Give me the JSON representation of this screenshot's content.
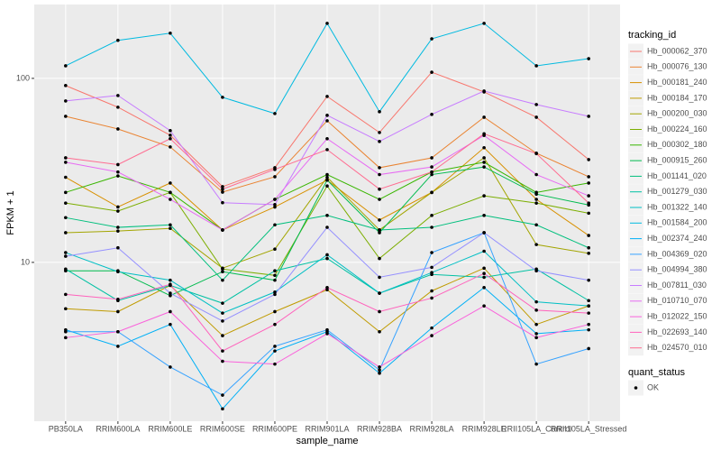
{
  "chart_data": {
    "type": "line",
    "x_label": "sample_name",
    "y_label": "FPKM + 1",
    "log_y": true,
    "grid": true,
    "categories": [
      "PB350LA",
      "RRIM600LA",
      "RRIM600LE",
      "RRIM600SE",
      "RRIM600PE",
      "RRIM901LA",
      "RRIM928BA",
      "RRIM928LA",
      "RRIM928LE",
      "RRII105LA_Control",
      "RRII105LA_Stressed"
    ],
    "ylim": [
      1.37,
      252
    ],
    "yticks": [
      10,
      100
    ],
    "legend_title": "tracking_id",
    "point_legend_title": "quant_status",
    "point_legend_items": [
      "OK"
    ],
    "point_color": "#000000",
    "series": [
      {
        "name": "Hb_000062_370",
        "color": "#F8766D",
        "values": [
          91.4,
          69.7,
          49.1,
          25.8,
          32.7,
          79.8,
          50.8,
          108,
          84.4,
          61.5,
          36.2
        ]
      },
      {
        "name": "Hb_000076_130",
        "color": "#EA8331",
        "values": [
          62.2,
          53.1,
          42.4,
          24.1,
          29.2,
          58.8,
          32.7,
          37.0,
          61.5,
          39.2,
          29.2
        ]
      },
      {
        "name": "Hb_000181_240",
        "color": "#D89000",
        "values": [
          29,
          20,
          27,
          15,
          20,
          28,
          17,
          24,
          42,
          22,
          14
        ]
      },
      {
        "name": "Hb_000184_170",
        "color": "#C09B00",
        "values": [
          5.6,
          5.4,
          7.5,
          4.0,
          5.4,
          7.1,
          4.2,
          7.0,
          9.3,
          4.6,
          5.8
        ]
      },
      {
        "name": "Hb_000200_030",
        "color": "#A3A500",
        "values": [
          14.5,
          14.8,
          15.3,
          9.3,
          11.8,
          29,
          15,
          24,
          37,
          12.5,
          11.2
        ]
      },
      {
        "name": "Hb_000224_160",
        "color": "#7CAE00",
        "values": [
          21,
          19,
          24,
          9.2,
          8.5,
          26,
          10.5,
          18,
          23,
          21,
          18.5
        ]
      },
      {
        "name": "Hb_000302_180",
        "color": "#39B600",
        "values": [
          24,
          29.5,
          24,
          15,
          22,
          30,
          22,
          31,
          35,
          24,
          27
        ]
      },
      {
        "name": "Hb_000915_260",
        "color": "#00BB4E",
        "values": [
          9.0,
          9.0,
          6.6,
          8.9,
          8.0,
          28,
          14.5,
          30,
          33,
          23.5,
          20.5
        ]
      },
      {
        "name": "Hb_001141_020",
        "color": "#00BF7D",
        "values": [
          17.5,
          15.5,
          16,
          8.0,
          16,
          18,
          15,
          15.5,
          18,
          16,
          12
        ]
      },
      {
        "name": "Hb_001279_030",
        "color": "#00C1A3",
        "values": [
          9.2,
          6.2,
          7.5,
          6.0,
          9.0,
          10.5,
          6.8,
          8.6,
          8.3,
          9.2,
          6.2
        ]
      },
      {
        "name": "Hb_001322_140",
        "color": "#00BFC4",
        "values": [
          11.3,
          8.9,
          8.0,
          5.3,
          6.9,
          11,
          6.8,
          8.8,
          11.5,
          6.1,
          5.8
        ]
      },
      {
        "name": "Hb_001584_200",
        "color": "#00BAE0",
        "values": [
          117,
          161,
          176,
          78.9,
          64.4,
          199,
          65.9,
          164,
          199,
          117,
          128
        ]
      },
      {
        "name": "Hb_002374_240",
        "color": "#00B0F6",
        "values": [
          4.3,
          3.5,
          4.6,
          1.6,
          3.3,
          4.2,
          2.5,
          4.4,
          7.3,
          4.1,
          4.3
        ]
      },
      {
        "name": "Hb_004369_020",
        "color": "#35A2FF",
        "values": [
          4.2,
          4.2,
          2.7,
          1.9,
          3.5,
          4.3,
          2.6,
          11.3,
          14.5,
          2.8,
          3.4
        ]
      },
      {
        "name": "Hb_004994_380",
        "color": "#9590FF",
        "values": [
          10.8,
          12,
          6.8,
          4.8,
          6.7,
          15.5,
          8.3,
          9.4,
          14.5,
          9.0,
          8.0
        ]
      },
      {
        "name": "Hb_007811_030",
        "color": "#C77CFF",
        "values": [
          75.4,
          80.7,
          52,
          21.1,
          20.6,
          63,
          45.4,
          63.7,
          85.4,
          72.1,
          62.2
        ]
      },
      {
        "name": "Hb_010710_070",
        "color": "#E76BF3",
        "values": [
          35,
          31,
          22,
          15,
          22,
          47,
          30,
          33,
          49,
          30,
          23
        ]
      },
      {
        "name": "Hb_012022_150",
        "color": "#FA62DB",
        "values": [
          3.9,
          4.2,
          5.4,
          2.9,
          2.8,
          4.1,
          2.7,
          4.0,
          5.8,
          3.9,
          4.6
        ]
      },
      {
        "name": "Hb_022693_140",
        "color": "#FF62BC",
        "values": [
          6.7,
          6.3,
          7.6,
          3.3,
          4.6,
          7.3,
          5.4,
          6.4,
          8.7,
          5.5,
          5.3
        ]
      },
      {
        "name": "Hb_024570_010",
        "color": "#FF6C91",
        "values": [
          37,
          34,
          47,
          25,
          32,
          41,
          25,
          31,
          50,
          39,
          21
        ]
      }
    ]
  }
}
